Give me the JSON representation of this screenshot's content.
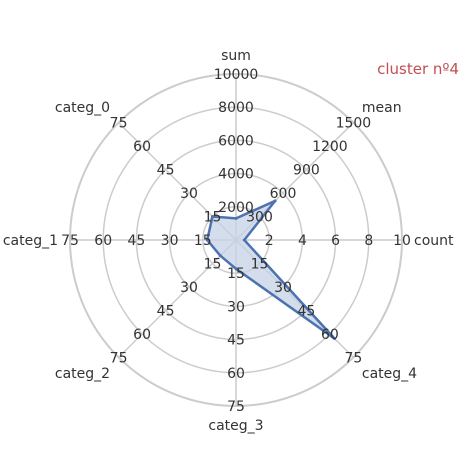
{
  "chart_data": {
    "type": "radar",
    "title": "cluster nº4",
    "title_color": "#c44e52",
    "series_color": "#4c72b0",
    "fill_color": "#c5d1e6",
    "grid_color": "#cccccc",
    "axes": [
      {
        "name": "count",
        "ticks": [
          "2",
          "4",
          "6",
          "8",
          "10"
        ],
        "max": 10
      },
      {
        "name": "mean",
        "ticks": [
          "300",
          "600",
          "900",
          "1200",
          "1500"
        ],
        "max": 1500
      },
      {
        "name": "sum",
        "ticks": [
          "2000",
          "4000",
          "6000",
          "8000",
          "10000"
        ],
        "max": 10000
      },
      {
        "name": "categ_0",
        "ticks": [
          "15",
          "30",
          "45",
          "60",
          "75"
        ],
        "max": 75
      },
      {
        "name": "categ_1",
        "ticks": [
          "15",
          "30",
          "45",
          "60",
          "75"
        ],
        "max": 75
      },
      {
        "name": "categ_2",
        "ticks": [
          "15",
          "30",
          "45",
          "60",
          "75"
        ],
        "max": 75
      },
      {
        "name": "categ_3",
        "ticks": [
          "15",
          "30",
          "45",
          "60",
          "75"
        ],
        "max": 75
      },
      {
        "name": "categ_4",
        "ticks": [
          "15",
          "30",
          "45",
          "60",
          "75"
        ],
        "max": 75
      }
    ],
    "values": [
      0.5,
      500,
      1300,
      15,
      13,
      10,
      13,
      63
    ],
    "legend": "none",
    "grid": true
  }
}
